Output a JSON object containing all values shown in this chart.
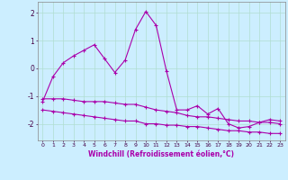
{
  "xlabel": "Windchill (Refroidissement éolien,°C)",
  "background_color": "#cceeff",
  "grid_color": "#b0ddd0",
  "line_color": "#aa00aa",
  "line1": [
    -1.2,
    -0.3,
    0.2,
    0.45,
    0.65,
    0.85,
    0.35,
    -0.15,
    0.3,
    1.4,
    2.05,
    1.55,
    -0.1,
    -1.5,
    -1.5,
    -1.35,
    -1.65,
    -1.45,
    -2.0,
    -2.15,
    -2.1,
    -1.95,
    -1.85,
    -1.9
  ],
  "line2": [
    -1.1,
    -1.1,
    -1.1,
    -1.15,
    -1.2,
    -1.2,
    -1.2,
    -1.25,
    -1.3,
    -1.3,
    -1.4,
    -1.5,
    -1.55,
    -1.6,
    -1.7,
    -1.75,
    -1.75,
    -1.8,
    -1.85,
    -1.9,
    -1.9,
    -1.95,
    -1.95,
    -2.0
  ],
  "line3": [
    -1.5,
    -1.55,
    -1.6,
    -1.65,
    -1.7,
    -1.75,
    -1.8,
    -1.85,
    -1.9,
    -1.9,
    -2.0,
    -2.0,
    -2.05,
    -2.05,
    -2.1,
    -2.1,
    -2.15,
    -2.2,
    -2.25,
    -2.25,
    -2.3,
    -2.3,
    -2.35,
    -2.35
  ],
  "xlim": [
    -0.5,
    23.5
  ],
  "ylim": [
    -2.6,
    2.4
  ],
  "yticks": [
    -2,
    -1,
    0,
    1,
    2
  ],
  "xticks": [
    0,
    1,
    2,
    3,
    4,
    5,
    6,
    7,
    8,
    9,
    10,
    11,
    12,
    13,
    14,
    15,
    16,
    17,
    18,
    19,
    20,
    21,
    22,
    23
  ]
}
